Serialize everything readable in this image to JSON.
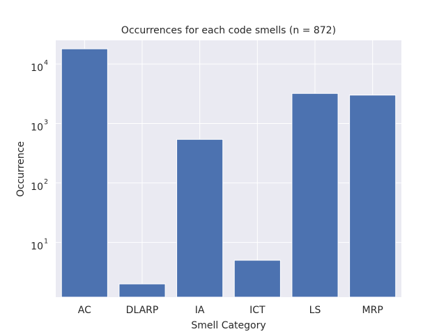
{
  "chart_data": {
    "type": "bar",
    "title": "Occurrences for each code smells (n = 872)",
    "xlabel": "Smell Category",
    "ylabel": "Occurrence",
    "categories": [
      "AC",
      "DLARP",
      "IA",
      "ICT",
      "LS",
      "MRP"
    ],
    "values": [
      18000,
      2,
      540,
      5,
      3200,
      3000
    ],
    "yscale": "log",
    "ylim": [
      1.2,
      25000
    ],
    "yticks": [
      {
        "value": 10,
        "base": "10",
        "exp": "1"
      },
      {
        "value": 100,
        "base": "10",
        "exp": "2"
      },
      {
        "value": 1000,
        "base": "10",
        "exp": "3"
      },
      {
        "value": 10000,
        "base": "10",
        "exp": "4"
      }
    ],
    "grid": true,
    "colors": {
      "bar": "#4c72b0",
      "background": "#eaeaf2",
      "grid": "#ffffff",
      "text": "#262626"
    }
  }
}
